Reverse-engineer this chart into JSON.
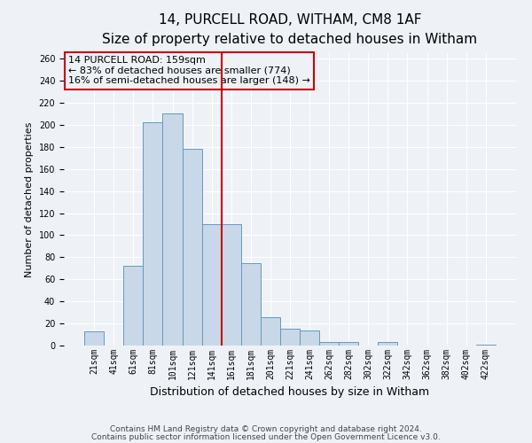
{
  "title": "14, PURCELL ROAD, WITHAM, CM8 1AF",
  "subtitle": "Size of property relative to detached houses in Witham",
  "xlabel": "Distribution of detached houses by size in Witham",
  "ylabel": "Number of detached properties",
  "bar_labels": [
    "21sqm",
    "41sqm",
    "61sqm",
    "81sqm",
    "101sqm",
    "121sqm",
    "141sqm",
    "161sqm",
    "181sqm",
    "201sqm",
    "221sqm",
    "241sqm",
    "262sqm",
    "282sqm",
    "302sqm",
    "322sqm",
    "342sqm",
    "362sqm",
    "382sqm",
    "402sqm",
    "422sqm"
  ],
  "bar_values": [
    13,
    0,
    72,
    202,
    210,
    178,
    110,
    110,
    75,
    26,
    15,
    14,
    3,
    3,
    0,
    3,
    0,
    0,
    0,
    0,
    1
  ],
  "bar_color": "#c8d8e8",
  "bar_edge_color": "#6699bb",
  "vline_color": "#cc0000",
  "annotation_title": "14 PURCELL ROAD: 159sqm",
  "annotation_line1": "← 83% of detached houses are smaller (774)",
  "annotation_line2": "16% of semi-detached houses are larger (148) →",
  "annotation_box_color": "#cc0000",
  "ylim": [
    0,
    265
  ],
  "yticks": [
    0,
    20,
    40,
    60,
    80,
    100,
    120,
    140,
    160,
    180,
    200,
    220,
    240,
    260
  ],
  "footer1": "Contains HM Land Registry data © Crown copyright and database right 2024.",
  "footer2": "Contains public sector information licensed under the Open Government Licence v3.0.",
  "background_color": "#eef2f7",
  "grid_color": "#ffffff",
  "title_fontsize": 11,
  "subtitle_fontsize": 9,
  "xlabel_fontsize": 9,
  "ylabel_fontsize": 8,
  "tick_fontsize": 7,
  "footer_fontsize": 6.5,
  "ann_fontsize": 8
}
